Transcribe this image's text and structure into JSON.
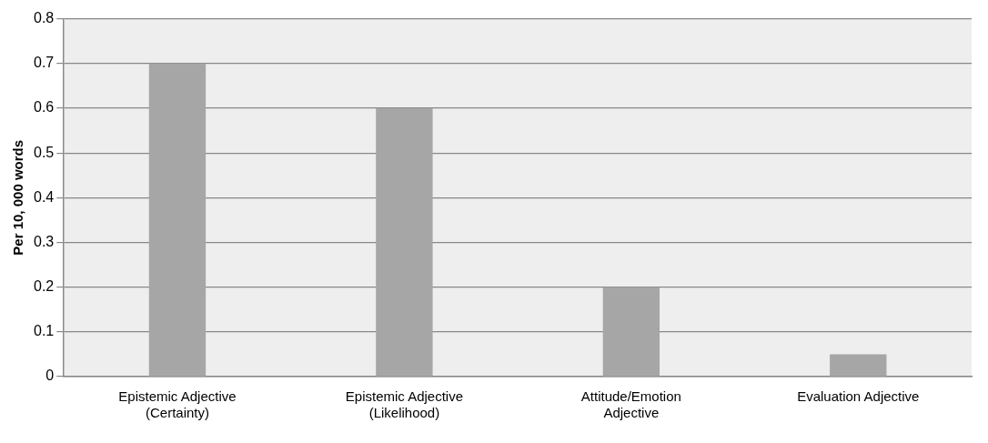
{
  "chart_data": {
    "type": "bar",
    "ylabel": "Per 10, 000 words",
    "categories": [
      "Epistemic Adjective (Certainty)",
      "Epistemic Adjective (Likelihood)",
      "Attitude/Emotion Adjective",
      "Evaluation Adjective"
    ],
    "values": [
      0.7,
      0.6,
      0.2,
      0.05
    ],
    "color": "#a6a6a6",
    "ylim": [
      0,
      0.8
    ],
    "yticks": [
      0,
      0.1,
      0.2,
      0.3,
      0.4,
      0.5,
      0.6,
      0.7,
      0.8
    ],
    "grid": "y",
    "legend": false
  }
}
